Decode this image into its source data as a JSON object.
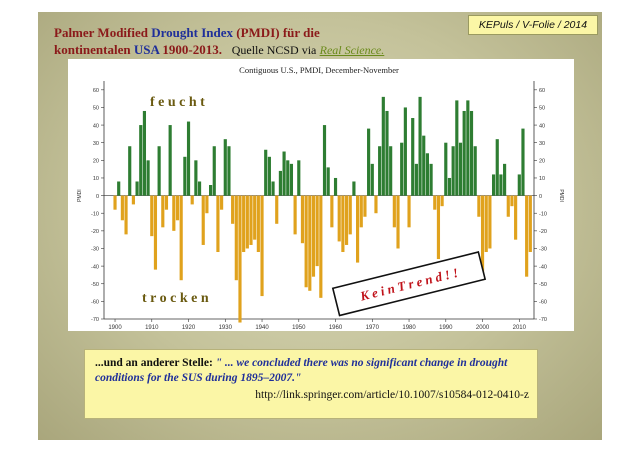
{
  "badge": "KEPuls / V-Folie / 2014",
  "title": {
    "part1": "Palmer Modified ",
    "part2": "Drought Index",
    "part3": " (PMDI) für die",
    "part4": "kontinentalen ",
    "part5": "USA",
    "part6": " 1900-2013.",
    "source": "Quelle NCSD via",
    "source_link": "Real Science."
  },
  "quote": {
    "lead": "...und an anderer Stelle: ",
    "text": "\" ... we concluded there was no significant change in drought conditions for the SUS during 1895–2007.\"",
    "url": "http://link.springer.com/article/10.1007/s10584-012-0410-z"
  },
  "colors": {
    "wet": "#2e7d32",
    "dry": "#e0a21d",
    "annotation": "#c0121a",
    "label": "#6a5a10"
  },
  "chart_data": {
    "type": "bar",
    "title": "Contiguous U.S., PMDI, December-November",
    "ylabel_left": "PMDI",
    "ylabel_right": "PMDI",
    "ylim": [
      -70,
      65
    ],
    "yticks": [
      -70,
      -60,
      -50,
      -40,
      -30,
      -20,
      -10,
      0,
      10,
      20,
      30,
      40,
      50,
      60
    ],
    "xlim": [
      1897,
      2014
    ],
    "xticks": [
      1900,
      1910,
      1920,
      1930,
      1940,
      1950,
      1960,
      1970,
      1980,
      1990,
      2000,
      2010
    ],
    "grid": false,
    "labels": {
      "wet": "f e u c h t",
      "dry": "t r o c k e n",
      "trend": "K e i n   T r e n d  ! !"
    },
    "years": [
      1900,
      1901,
      1902,
      1903,
      1904,
      1905,
      1906,
      1907,
      1908,
      1909,
      1910,
      1911,
      1912,
      1913,
      1914,
      1915,
      1916,
      1917,
      1918,
      1919,
      1920,
      1921,
      1922,
      1923,
      1924,
      1925,
      1926,
      1927,
      1928,
      1929,
      1930,
      1931,
      1932,
      1933,
      1934,
      1935,
      1936,
      1937,
      1938,
      1939,
      1940,
      1941,
      1942,
      1943,
      1944,
      1945,
      1946,
      1947,
      1948,
      1949,
      1950,
      1951,
      1952,
      1953,
      1954,
      1955,
      1956,
      1957,
      1958,
      1959,
      1960,
      1961,
      1962,
      1963,
      1964,
      1965,
      1966,
      1967,
      1968,
      1969,
      1970,
      1971,
      1972,
      1973,
      1974,
      1975,
      1976,
      1977,
      1978,
      1979,
      1980,
      1981,
      1982,
      1983,
      1984,
      1985,
      1986,
      1987,
      1988,
      1989,
      1990,
      1991,
      1992,
      1993,
      1994,
      1995,
      1996,
      1997,
      1998,
      1999,
      2000,
      2001,
      2002,
      2003,
      2004,
      2005,
      2006,
      2007,
      2008,
      2009,
      2010,
      2011,
      2012,
      2013
    ],
    "values": [
      -8,
      8,
      -14,
      -22,
      28,
      -5,
      8,
      40,
      48,
      20,
      -23,
      -42,
      28,
      -18,
      -8,
      40,
      -20,
      -14,
      -48,
      22,
      42,
      -5,
      20,
      8,
      -28,
      -10,
      6,
      28,
      -32,
      -8,
      32,
      28,
      -16,
      -48,
      -72,
      -32,
      -30,
      -28,
      -25,
      -32,
      -57,
      26,
      22,
      8,
      -16,
      14,
      25,
      20,
      18,
      -22,
      20,
      -27,
      -52,
      -54,
      -46,
      -40,
      -58,
      40,
      16,
      -18,
      10,
      -26,
      -32,
      -28,
      -22,
      8,
      -38,
      -18,
      -12,
      38,
      18,
      -10,
      28,
      56,
      48,
      28,
      -18,
      -30,
      30,
      50,
      -18,
      44,
      18,
      56,
      34,
      24,
      18,
      -8,
      -36,
      -6,
      30,
      10,
      28,
      54,
      30,
      48,
      54,
      48,
      28,
      -12,
      -48,
      -32,
      -30,
      12,
      32,
      12,
      18,
      -12,
      -6,
      -25,
      12,
      38,
      -46,
      -32
    ]
  }
}
